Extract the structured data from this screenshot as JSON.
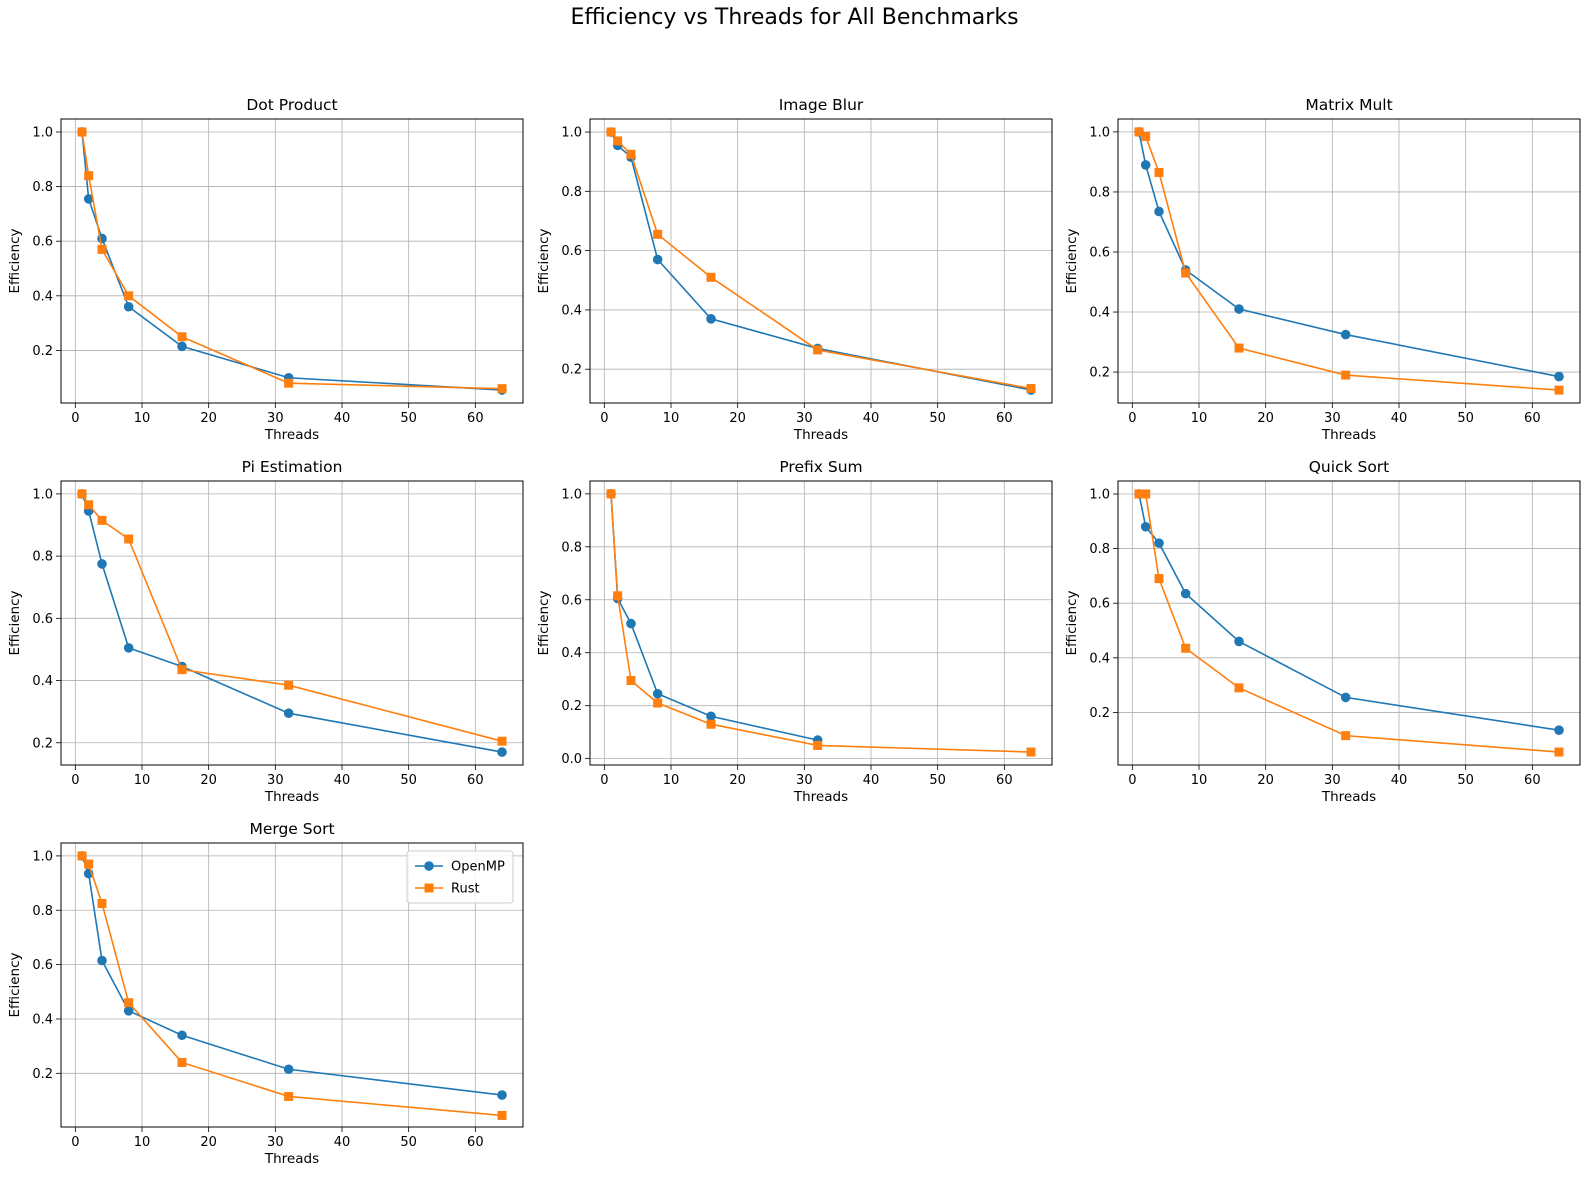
{
  "figure": {
    "title": "Efficiency vs Threads for All Benchmarks"
  },
  "series_styles": [
    {
      "name": "OpenMP",
      "color": "#1f77b4",
      "marker": "circle"
    },
    {
      "name": "Rust",
      "color": "#ff7f0e",
      "marker": "square"
    }
  ],
  "chart_data": [
    {
      "type": "line",
      "title": "Dot Product",
      "xlabel": "Threads",
      "ylabel": "Efficiency",
      "xlim": [
        -2.15,
        67.15
      ],
      "ylim": [
        0.0075,
        1.0475
      ],
      "xticks": [
        0,
        10,
        20,
        30,
        40,
        50,
        60
      ],
      "yticks": [
        0.2,
        0.4,
        0.6,
        0.8,
        1.0
      ],
      "grid": true,
      "series": [
        {
          "name": "OpenMP",
          "x": [
            1,
            2,
            4,
            8,
            16,
            32,
            64
          ],
          "y": [
            1.0,
            0.755,
            0.61,
            0.36,
            0.215,
            0.1,
            0.055
          ]
        },
        {
          "name": "Rust",
          "x": [
            1,
            2,
            4,
            8,
            16,
            32,
            64
          ],
          "y": [
            1.0,
            0.84,
            0.57,
            0.4,
            0.25,
            0.08,
            0.06
          ]
        }
      ]
    },
    {
      "type": "line",
      "title": "Image Blur",
      "xlabel": "Threads",
      "ylabel": "Efficiency",
      "xlim": [
        -2.15,
        67.15
      ],
      "ylim": [
        0.086,
        1.044
      ],
      "xticks": [
        0,
        10,
        20,
        30,
        40,
        50,
        60
      ],
      "yticks": [
        0.2,
        0.4,
        0.6,
        0.8,
        1.0
      ],
      "grid": true,
      "series": [
        {
          "name": "OpenMP",
          "x": [
            1,
            2,
            4,
            8,
            16,
            32,
            64
          ],
          "y": [
            1.0,
            0.955,
            0.915,
            0.57,
            0.37,
            0.27,
            0.13
          ]
        },
        {
          "name": "Rust",
          "x": [
            1,
            2,
            4,
            8,
            16,
            32,
            64
          ],
          "y": [
            1.0,
            0.97,
            0.925,
            0.655,
            0.51,
            0.265,
            0.135
          ]
        }
      ]
    },
    {
      "type": "line",
      "title": "Matrix Mult",
      "xlabel": "Threads",
      "ylabel": "Efficiency",
      "xlim": [
        -2.15,
        67.15
      ],
      "ylim": [
        0.097,
        1.043
      ],
      "xticks": [
        0,
        10,
        20,
        30,
        40,
        50,
        60
      ],
      "yticks": [
        0.2,
        0.4,
        0.6,
        0.8,
        1.0
      ],
      "grid": true,
      "series": [
        {
          "name": "OpenMP",
          "x": [
            1,
            2,
            4,
            8,
            16,
            32,
            64
          ],
          "y": [
            1.0,
            0.89,
            0.735,
            0.54,
            0.41,
            0.325,
            0.185
          ]
        },
        {
          "name": "Rust",
          "x": [
            1,
            2,
            4,
            8,
            16,
            32,
            64
          ],
          "y": [
            1.0,
            0.985,
            0.865,
            0.53,
            0.28,
            0.19,
            0.14
          ]
        }
      ]
    },
    {
      "type": "line",
      "title": "Pi Estimation",
      "xlabel": "Threads",
      "ylabel": "Efficiency",
      "xlim": [
        -2.15,
        67.15
      ],
      "ylim": [
        0.1285,
        1.0415
      ],
      "xticks": [
        0,
        10,
        20,
        30,
        40,
        50,
        60
      ],
      "yticks": [
        0.2,
        0.4,
        0.6,
        0.8,
        1.0
      ],
      "grid": true,
      "series": [
        {
          "name": "OpenMP",
          "x": [
            1,
            2,
            4,
            8,
            16,
            32,
            64
          ],
          "y": [
            1.0,
            0.945,
            0.775,
            0.505,
            0.445,
            0.295,
            0.17
          ]
        },
        {
          "name": "Rust",
          "x": [
            1,
            2,
            4,
            8,
            16,
            32,
            64
          ],
          "y": [
            1.0,
            0.965,
            0.915,
            0.855,
            0.435,
            0.385,
            0.205
          ]
        }
      ]
    },
    {
      "type": "line",
      "title": "Prefix Sum",
      "xlabel": "Threads",
      "ylabel": "Efficiency",
      "xlim": [
        -2.15,
        67.15
      ],
      "ylim": [
        -0.024,
        1.0485
      ],
      "xticks": [
        0,
        10,
        20,
        30,
        40,
        50,
        60
      ],
      "yticks": [
        0.0,
        0.2,
        0.4,
        0.6,
        0.8,
        1.0
      ],
      "grid": true,
      "series": [
        {
          "name": "OpenMP",
          "x": [
            1,
            2,
            4,
            8,
            16,
            32
          ],
          "y": [
            1.0,
            0.605,
            0.51,
            0.245,
            0.16,
            0.07
          ]
        },
        {
          "name": "Rust",
          "x": [
            1,
            2,
            4,
            8,
            16,
            32,
            64
          ],
          "y": [
            1.0,
            0.615,
            0.295,
            0.21,
            0.13,
            0.05,
            0.025
          ]
        }
      ]
    },
    {
      "type": "line",
      "title": "Quick Sort",
      "xlabel": "Threads",
      "ylabel": "Efficiency",
      "xlim": [
        -2.15,
        67.15
      ],
      "ylim": [
        0.0075,
        1.0475
      ],
      "xticks": [
        0,
        10,
        20,
        30,
        40,
        50,
        60
      ],
      "yticks": [
        0.2,
        0.4,
        0.6,
        0.8,
        1.0
      ],
      "grid": true,
      "series": [
        {
          "name": "OpenMP",
          "x": [
            1,
            2,
            4,
            8,
            16,
            32,
            64
          ],
          "y": [
            1.0,
            0.88,
            0.82,
            0.635,
            0.46,
            0.255,
            0.135
          ]
        },
        {
          "name": "Rust",
          "x": [
            1,
            2,
            4,
            8,
            16,
            32,
            64
          ],
          "y": [
            1.0,
            1.0,
            0.69,
            0.435,
            0.29,
            0.115,
            0.055
          ]
        }
      ]
    },
    {
      "type": "line",
      "title": "Merge Sort",
      "xlabel": "Threads",
      "ylabel": "Efficiency",
      "xlim": [
        -2.15,
        67.15
      ],
      "ylim": [
        0.0025,
        1.0475
      ],
      "xticks": [
        0,
        10,
        20,
        30,
        40,
        50,
        60
      ],
      "yticks": [
        0.2,
        0.4,
        0.6,
        0.8,
        1.0
      ],
      "grid": true,
      "legend": {
        "position": "upper right",
        "entries": [
          "OpenMP",
          "Rust"
        ]
      },
      "series": [
        {
          "name": "OpenMP",
          "x": [
            1,
            2,
            4,
            8,
            16,
            32,
            64
          ],
          "y": [
            1.0,
            0.935,
            0.615,
            0.43,
            0.34,
            0.215,
            0.12
          ]
        },
        {
          "name": "Rust",
          "x": [
            1,
            2,
            4,
            8,
            16,
            32,
            64
          ],
          "y": [
            1.0,
            0.97,
            0.825,
            0.46,
            0.24,
            0.115,
            0.045
          ]
        }
      ]
    }
  ]
}
